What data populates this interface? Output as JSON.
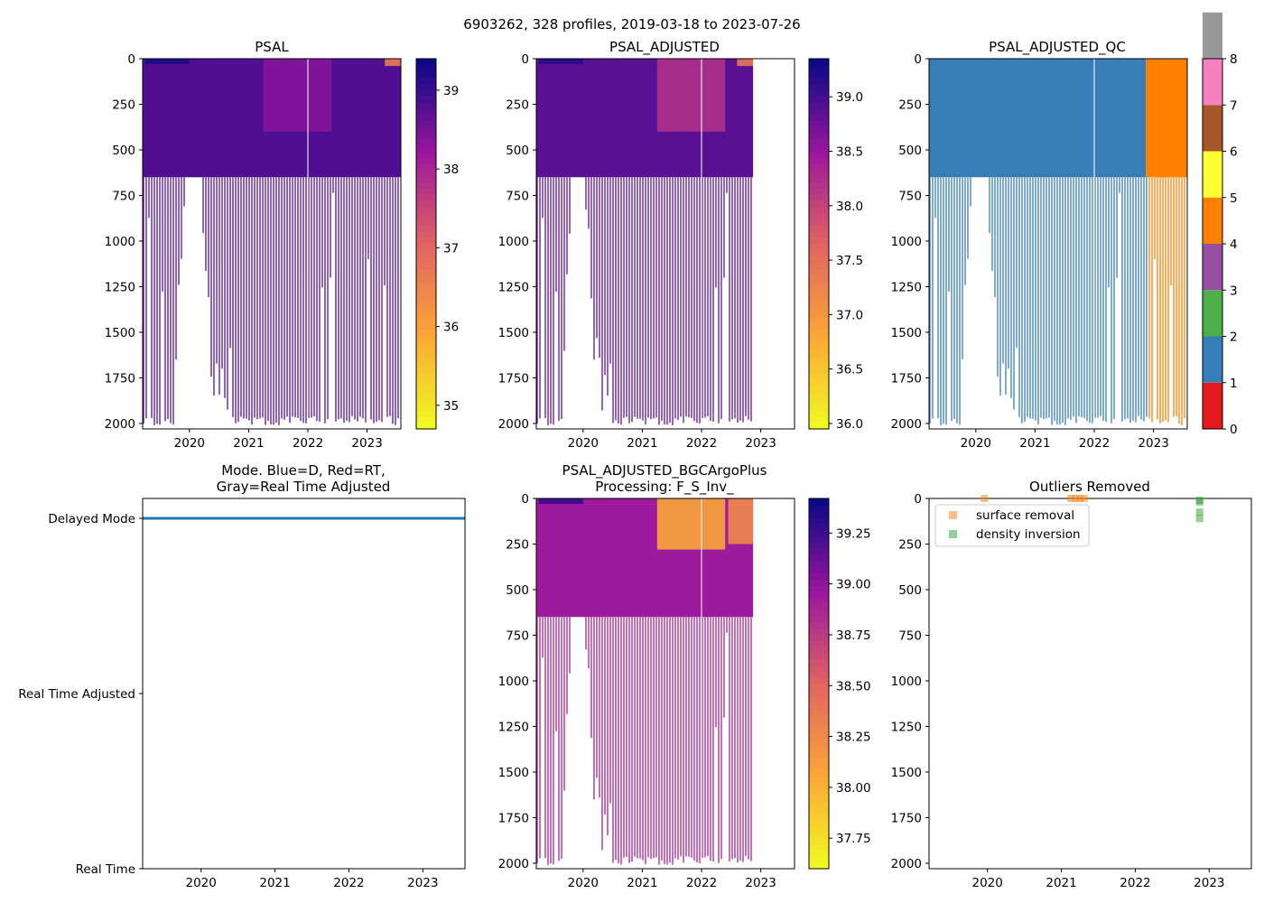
{
  "figure_title": "6903262, 328 profiles, 2019-03-18 to 2023-07-26",
  "chart_data": [
    {
      "id": "psal",
      "type": "heatmap",
      "title": "PSAL",
      "xlim": [
        2019.21,
        2023.57
      ],
      "ylim": [
        2030,
        0
      ],
      "xticks": [
        2020,
        2021,
        2022,
        2023
      ],
      "yticks": [
        0,
        250,
        500,
        750,
        1000,
        1250,
        1500,
        1750,
        2000
      ],
      "data_end": 2023.57,
      "colormap": "plasma_r",
      "colorbar": {
        "min": 34.7,
        "max": 39.4,
        "ticks": [
          35,
          36,
          37,
          38,
          39
        ]
      },
      "regions": [
        {
          "x": [
            2019.21,
            2023.57
          ],
          "y": [
            0,
            650
          ],
          "value": 38.85
        },
        {
          "x": [
            2019.25,
            2020.0
          ],
          "y": [
            0,
            30
          ],
          "value": 39.3
        },
        {
          "x": [
            2021.25,
            2022.4
          ],
          "y": [
            0,
            400
          ],
          "value": 38.4
        },
        {
          "x": [
            2023.3,
            2023.57
          ],
          "y": [
            0,
            40
          ],
          "value": 36.5
        }
      ]
    },
    {
      "id": "psal_adj",
      "type": "heatmap",
      "title": "PSAL_ADJUSTED",
      "xlim": [
        2019.21,
        2023.57
      ],
      "ylim": [
        2030,
        0
      ],
      "xticks": [
        2020,
        2021,
        2022,
        2023
      ],
      "yticks": [
        0,
        250,
        500,
        750,
        1000,
        1250,
        1500,
        1750,
        2000
      ],
      "data_end": 2022.87,
      "colormap": "plasma_r",
      "colorbar": {
        "min": 35.95,
        "max": 39.35,
        "ticks": [
          36.0,
          36.5,
          37.0,
          37.5,
          38.0,
          38.5,
          39.0
        ]
      },
      "regions": [
        {
          "x": [
            2019.21,
            2022.87
          ],
          "y": [
            0,
            650
          ],
          "value": 38.9
        },
        {
          "x": [
            2019.25,
            2020.0
          ],
          "y": [
            0,
            30
          ],
          "value": 39.2
        },
        {
          "x": [
            2021.25,
            2022.4
          ],
          "y": [
            0,
            400
          ],
          "value": 38.2
        },
        {
          "x": [
            2022.6,
            2022.87
          ],
          "y": [
            0,
            40
          ],
          "value": 37.3
        }
      ]
    },
    {
      "id": "psal_qc",
      "type": "heatmap",
      "title": "PSAL_ADJUSTED_QC",
      "xlim": [
        2019.21,
        2023.57
      ],
      "ylim": [
        2030,
        0
      ],
      "xticks": [
        2020,
        2021,
        2022,
        2023
      ],
      "yticks": [
        0,
        250,
        500,
        750,
        1000,
        1250,
        1500,
        1750,
        2000
      ],
      "data_end": 2023.57,
      "qc_split": 2022.87,
      "qc_colors": {
        "before": "#377eb8",
        "after": "#ff7f00"
      },
      "colorbar": {
        "min": 0,
        "max": 8,
        "ticks": [
          0,
          1,
          2,
          3,
          4,
          5,
          6,
          7,
          8
        ],
        "colors": [
          "#e41a1c",
          "#377eb8",
          "#4daf4a",
          "#984ea3",
          "#ff7f00",
          "#ffff33",
          "#a65628",
          "#f781bf",
          "#999999"
        ]
      }
    },
    {
      "id": "mode",
      "type": "line",
      "title_lines": [
        "Mode. Blue=D, Red=RT,",
        "Gray=Real Time Adjusted"
      ],
      "xlim": [
        2019.21,
        2023.57
      ],
      "xticks": [
        2020,
        2021,
        2022,
        2023
      ],
      "ycategories": [
        "Real Time",
        "Real Time Adjusted",
        "Delayed Mode"
      ],
      "series": [
        {
          "name": "Delayed Mode",
          "x": [
            2019.21,
            2023.57
          ],
          "value": 2,
          "color": "#1f77b4"
        }
      ]
    },
    {
      "id": "bgc",
      "type": "heatmap",
      "title_lines": [
        "PSAL_ADJUSTED_BGCArgoPlus",
        "Processing: F_S_Inv_"
      ],
      "xlim": [
        2019.21,
        2023.57
      ],
      "ylim": [
        2030,
        0
      ],
      "xticks": [
        2020,
        2021,
        2022,
        2023
      ],
      "yticks": [
        0,
        250,
        500,
        750,
        1000,
        1250,
        1500,
        1750,
        2000
      ],
      "data_end": 2022.87,
      "colormap": "plasma_r",
      "colorbar": {
        "min": 37.6,
        "max": 39.42,
        "ticks": [
          37.75,
          38.0,
          38.25,
          38.5,
          38.75,
          39.0,
          39.25
        ]
      },
      "regions": [
        {
          "x": [
            2019.21,
            2022.87
          ],
          "y": [
            0,
            650
          ],
          "value": 38.95
        },
        {
          "x": [
            2019.25,
            2020.0
          ],
          "y": [
            0,
            30
          ],
          "value": 39.3
        },
        {
          "x": [
            2021.25,
            2022.4
          ],
          "y": [
            0,
            280
          ],
          "value": 38.0
        },
        {
          "x": [
            2022.45,
            2022.87
          ],
          "y": [
            0,
            250
          ],
          "value": 38.2
        }
      ]
    },
    {
      "id": "outliers",
      "type": "scatter",
      "title": "Outliers Removed",
      "xlim": [
        2019.21,
        2023.57
      ],
      "ylim": [
        2030,
        0
      ],
      "xticks": [
        2020,
        2021,
        2022,
        2023
      ],
      "yticks": [
        0,
        250,
        500,
        750,
        1000,
        1250,
        1500,
        1750,
        2000
      ],
      "series": [
        {
          "name": "surface removal",
          "color": "#ff7f0e",
          "points": [
            [
              2019.96,
              0
            ],
            [
              2021.13,
              0
            ],
            [
              2021.19,
              0
            ],
            [
              2021.25,
              0
            ],
            [
              2021.31,
              0
            ]
          ]
        },
        {
          "name": "density inversion",
          "color": "#2ca02c",
          "points": [
            [
              2022.87,
              10
            ],
            [
              2022.87,
              20
            ],
            [
              2022.87,
              75
            ],
            [
              2022.87,
              110
            ]
          ]
        }
      ]
    }
  ]
}
